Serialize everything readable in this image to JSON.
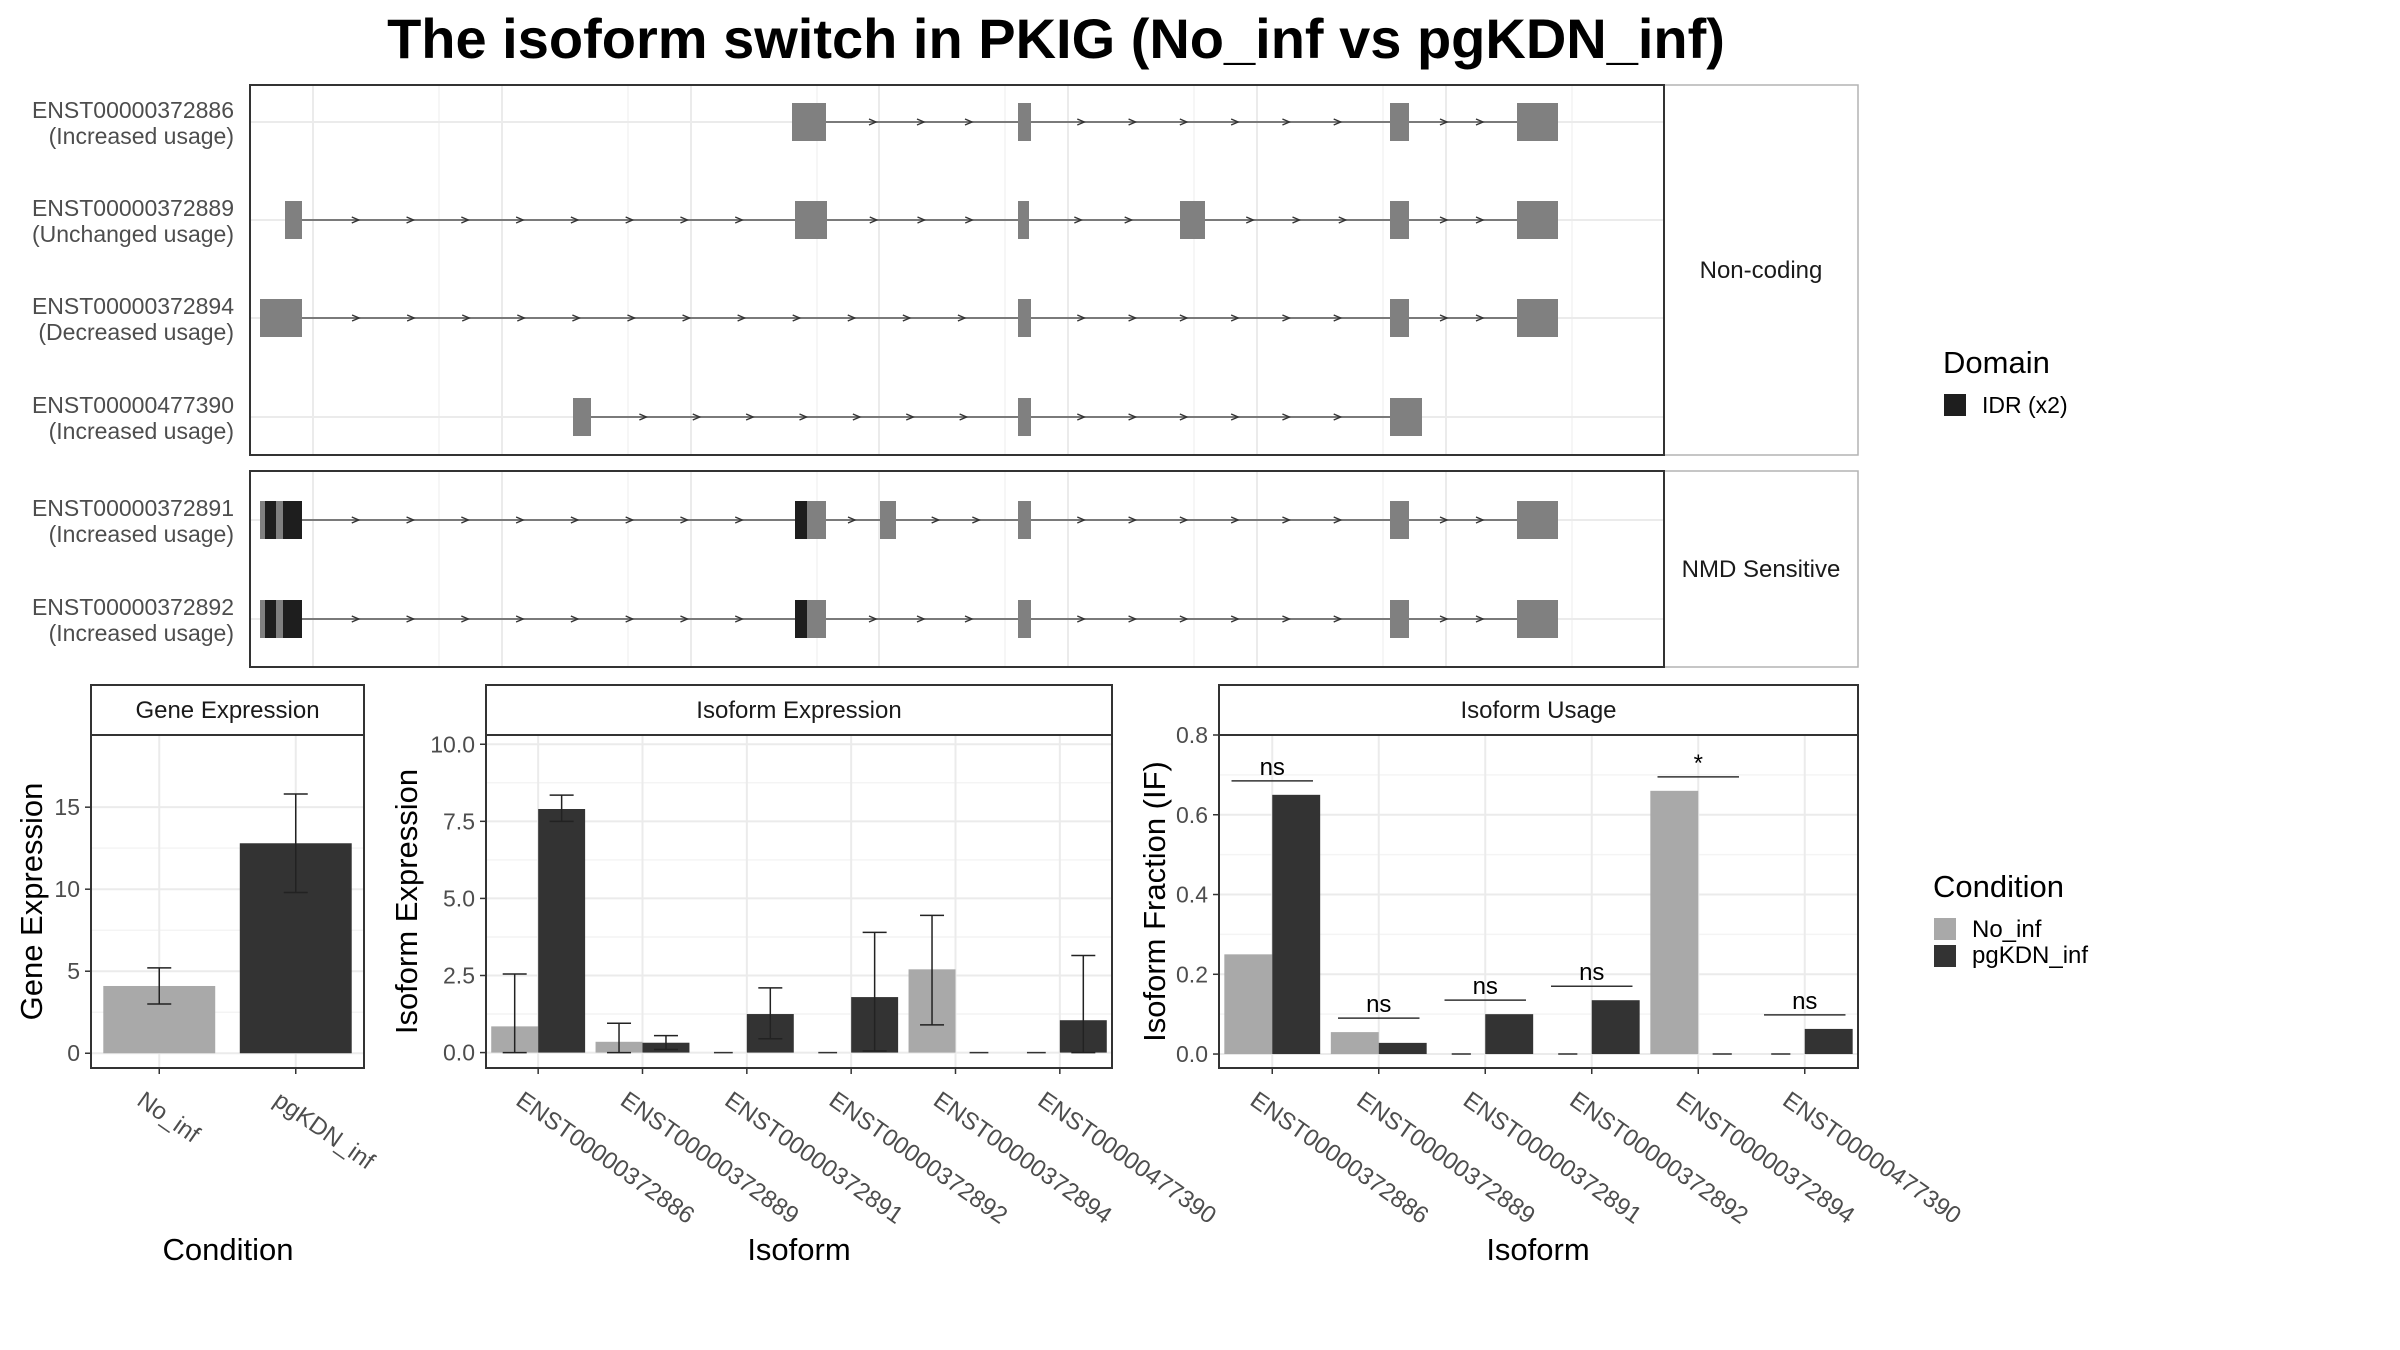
{
  "title": "The isoform switch in PKIG (No_inf vs pgKDN_inf)",
  "colors": {
    "no_inf": "#a9a9a9",
    "pgkdn_inf": "#333333",
    "exon": "#808080",
    "domain": "#1e1e1e",
    "grid": "#ebebeb",
    "strip": "#ffffff",
    "intron": "#555555"
  },
  "structure": {
    "groups": [
      {
        "label": "Non-coding",
        "transcripts": [
          {
            "id": "ENST00000372886",
            "usage": "(Increased usage)",
            "exons": [
              [
                542,
                576
              ],
              [
                768,
                781
              ],
              [
                1140,
                1159
              ],
              [
                1267,
                1308
              ]
            ],
            "domains": []
          },
          {
            "id": "ENST00000372889",
            "usage": "(Unchanged usage)",
            "exons": [
              [
                35,
                52
              ],
              [
                545,
                577
              ],
              [
                768,
                779
              ],
              [
                930,
                955
              ],
              [
                1140,
                1159
              ],
              [
                1267,
                1308
              ]
            ],
            "domains": []
          },
          {
            "id": "ENST00000372894",
            "usage": "(Decreased usage)",
            "exons": [
              [
                10,
                52
              ],
              [
                768,
                781
              ],
              [
                1140,
                1159
              ],
              [
                1267,
                1308
              ]
            ],
            "domains": []
          },
          {
            "id": "ENST00000477390",
            "usage": "(Increased usage)",
            "exons": [
              [
                323,
                341
              ],
              [
                768,
                781
              ],
              [
                1140,
                1172
              ]
            ],
            "domains": []
          }
        ]
      },
      {
        "label": "NMD Sensitive",
        "transcripts": [
          {
            "id": "ENST00000372891",
            "usage": "(Increased usage)",
            "exons": [
              [
                10,
                52
              ],
              [
                545,
                576
              ],
              [
                630,
                646
              ],
              [
                768,
                781
              ],
              [
                1140,
                1159
              ],
              [
                1267,
                1308
              ]
            ],
            "domains": [
              [
                15,
                26
              ],
              [
                33,
                52
              ],
              [
                545,
                557
              ]
            ]
          },
          {
            "id": "ENST00000372892",
            "usage": "(Increased usage)",
            "exons": [
              [
                10,
                52
              ],
              [
                545,
                576
              ],
              [
                768,
                781
              ],
              [
                1140,
                1159
              ],
              [
                1267,
                1308
              ]
            ],
            "domains": [
              [
                15,
                26
              ],
              [
                33,
                52
              ],
              [
                545,
                557
              ]
            ]
          }
        ]
      }
    ],
    "domain_legend": {
      "title": "Domain",
      "entries": [
        "IDR (x2)"
      ]
    }
  },
  "chart_data": [
    {
      "type": "bar",
      "title": "Gene Expression",
      "xlabel": "Condition",
      "ylabel": "Gene Expression",
      "categories": [
        "No_inf",
        "pgKDN_inf"
      ],
      "values": [
        4.1,
        12.8
      ],
      "error_low": [
        3.0,
        9.8
      ],
      "error_high": [
        5.2,
        15.8
      ],
      "ylim": [
        -0.9,
        19.4
      ],
      "yticks": [
        0,
        5,
        10,
        15
      ],
      "ytick_labels": [
        "0",
        "5",
        "10",
        "15"
      ]
    },
    {
      "type": "bar",
      "title": "Isoform Expression",
      "xlabel": "Isoform",
      "ylabel": "Isoform Expression",
      "categories": [
        "ENST00000372886",
        "ENST00000372889",
        "ENST00000372891",
        "ENST00000372892",
        "ENST00000372894",
        "ENST00000477390"
      ],
      "series": [
        {
          "name": "No_inf",
          "values": [
            0.85,
            0.35,
            0.0,
            0.0,
            2.7,
            0.0
          ],
          "error_low": [
            0.0,
            0.0,
            null,
            null,
            0.9,
            null
          ],
          "error_high": [
            2.55,
            0.95,
            null,
            null,
            4.45,
            null
          ]
        },
        {
          "name": "pgKDN_inf",
          "values": [
            7.9,
            0.32,
            1.25,
            1.8,
            0.0,
            1.05
          ],
          "error_low": [
            7.5,
            0.1,
            0.45,
            0.05,
            null,
            0.0
          ],
          "error_high": [
            8.35,
            0.55,
            2.1,
            3.9,
            null,
            3.15
          ]
        }
      ],
      "ylim": [
        -0.5,
        10.3
      ],
      "yticks": [
        0,
        2.5,
        5,
        7.5,
        10
      ],
      "ytick_labels": [
        "0.0",
        "2.5",
        "5.0",
        "7.5",
        "10.0"
      ]
    },
    {
      "type": "bar",
      "title": "Isoform Usage",
      "xlabel": "Isoform",
      "ylabel": "Isoform Fraction (IF)",
      "categories": [
        "ENST00000372886",
        "ENST00000372889",
        "ENST00000372891",
        "ENST00000372892",
        "ENST00000372894",
        "ENST00000477390"
      ],
      "series": [
        {
          "name": "No_inf",
          "values": [
            0.25,
            0.055,
            0.0,
            0.0,
            0.66,
            0.0
          ]
        },
        {
          "name": "pgKDN_inf",
          "values": [
            0.65,
            0.028,
            0.1,
            0.135,
            0.0,
            0.063
          ]
        }
      ],
      "significance": [
        "ns",
        "ns",
        "ns",
        "ns",
        "*",
        "ns"
      ],
      "ylim": [
        -0.035,
        0.8
      ],
      "yticks": [
        0,
        0.2,
        0.4,
        0.6,
        0.8
      ],
      "ytick_labels": [
        "0.0",
        "0.2",
        "0.4",
        "0.6",
        "0.8"
      ]
    }
  ],
  "condition_legend": {
    "title": "Condition",
    "entries": [
      "No_inf",
      "pgKDN_inf"
    ]
  }
}
